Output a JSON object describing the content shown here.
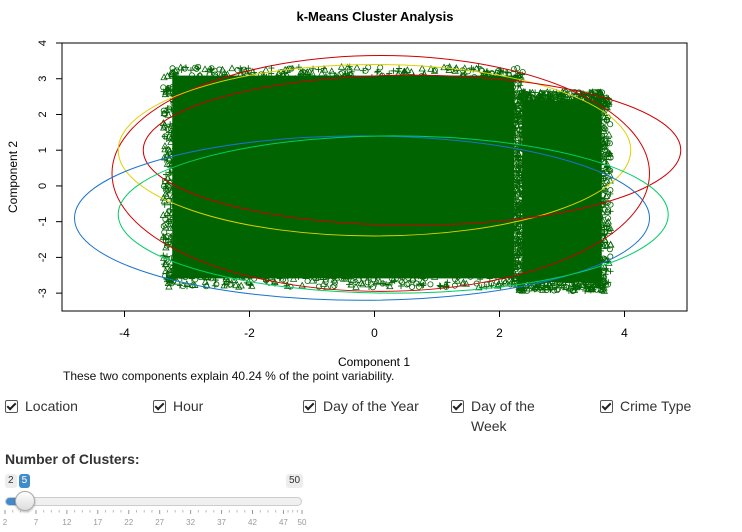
{
  "chart_data": {
    "type": "scatter",
    "title": "k-Means Cluster Analysis",
    "xlabel": "Component 1",
    "ylabel": "Component 2",
    "xlim": [
      -5,
      5
    ],
    "ylim": [
      -3.5,
      4
    ],
    "xticks": [
      -4,
      -2,
      0,
      2,
      4
    ],
    "yticks": [
      -3,
      -2,
      -1,
      0,
      1,
      2,
      3,
      4
    ],
    "point_color": "#006400",
    "main_region": {
      "x": [
        -3.3,
        2.3
      ],
      "y": [
        -2.7,
        3.2
      ]
    },
    "side_region": {
      "x": [
        2.3,
        3.7
      ],
      "y": [
        -2.8,
        2.5
      ]
    },
    "clusters": [
      {
        "color": "#cd0000",
        "center": [
          0.1,
          0.35
        ],
        "rx": 4.3,
        "ry": 3.3
      },
      {
        "color": "#e0d000",
        "center": [
          0.0,
          1.0
        ],
        "rx": 4.1,
        "ry": 2.4
      },
      {
        "color": "#cd0000",
        "center": [
          0.6,
          1.0
        ],
        "rx": 4.3,
        "ry": 2.1
      },
      {
        "color": "#1874cd",
        "center": [
          -0.2,
          -0.9
        ],
        "rx": 4.6,
        "ry": 2.3
      },
      {
        "color": "#00cd66",
        "center": [
          0.3,
          -0.8
        ],
        "rx": 4.4,
        "ry": 2.2
      }
    ]
  },
  "caption": "These two components explain 40.24 % of the point variability.",
  "checkboxes": [
    {
      "label": "Location",
      "checked": true
    },
    {
      "label": "Hour",
      "checked": true
    },
    {
      "label": "Day of the Year",
      "checked": true
    },
    {
      "label": "Day of the Week",
      "checked": true
    },
    {
      "label": "Crime Type",
      "checked": true
    }
  ],
  "slider": {
    "title": "Number of Clusters:",
    "min": 2,
    "max": 50,
    "value": 5,
    "min_label": "2",
    "max_label": "50",
    "value_label": "5",
    "grid": [
      "2",
      "7",
      "12",
      "17",
      "22",
      "27",
      "32",
      "37",
      "42",
      "47",
      "50"
    ],
    "accent": "#428bca"
  }
}
